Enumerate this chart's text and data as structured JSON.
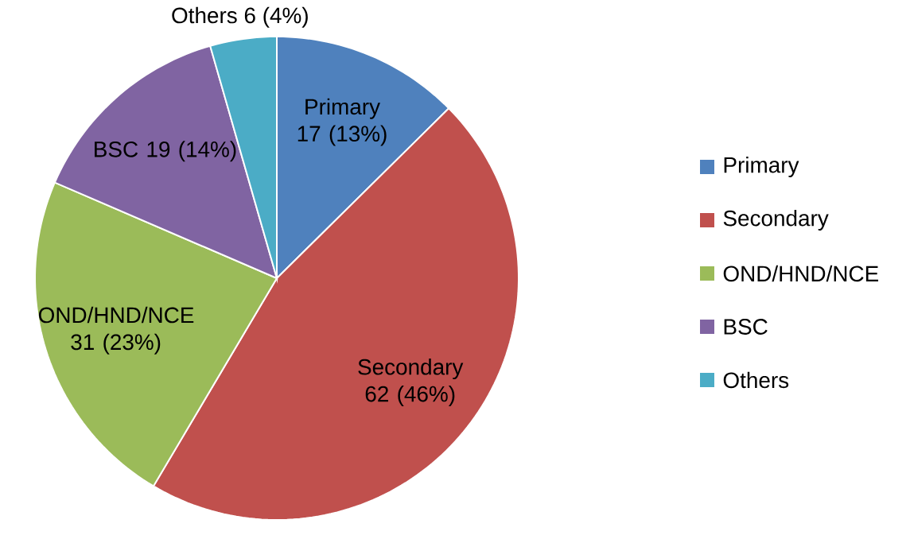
{
  "chart_data": {
    "type": "pie",
    "categories": [
      "Primary",
      "Secondary",
      "OND/HND/NCE",
      "BSC",
      "Others"
    ],
    "values": [
      17,
      62,
      31,
      19,
      6
    ],
    "value_labels": [
      "17 (13%)",
      "62 (46%)",
      "31 (23%)",
      "19 (14%)",
      "6 (4%)"
    ],
    "colors": [
      "#4f81bd",
      "#c0504d",
      "#9bbb59",
      "#8064a2",
      "#4bacc6"
    ],
    "legend": "right"
  }
}
